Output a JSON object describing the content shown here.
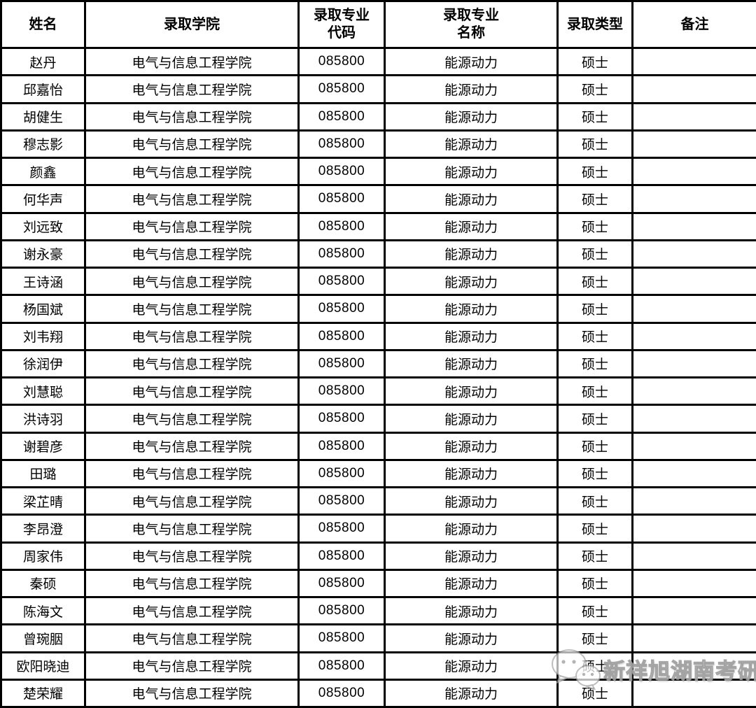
{
  "page": {
    "background": "#ffffff",
    "border_color": "#000000",
    "text_color": "#000000"
  },
  "table": {
    "fields": [
      "name",
      "college",
      "major_code",
      "major_name",
      "admission_type",
      "remark"
    ],
    "headers": [
      "姓名",
      "录取学院",
      "录取专业\n代码",
      "录取专业\n名称",
      "录取类型",
      "备注"
    ],
    "rows": [
      {
        "name": "赵丹",
        "college": "电气与信息工程学院",
        "major_code": "085800",
        "major_name": "能源动力",
        "admission_type": "硕士",
        "remark": ""
      },
      {
        "name": "邱嘉怡",
        "college": "电气与信息工程学院",
        "major_code": "085800",
        "major_name": "能源动力",
        "admission_type": "硕士",
        "remark": ""
      },
      {
        "name": "胡健生",
        "college": "电气与信息工程学院",
        "major_code": "085800",
        "major_name": "能源动力",
        "admission_type": "硕士",
        "remark": ""
      },
      {
        "name": "穆志影",
        "college": "电气与信息工程学院",
        "major_code": "085800",
        "major_name": "能源动力",
        "admission_type": "硕士",
        "remark": ""
      },
      {
        "name": "颜鑫",
        "college": "电气与信息工程学院",
        "major_code": "085800",
        "major_name": "能源动力",
        "admission_type": "硕士",
        "remark": ""
      },
      {
        "name": "何华声",
        "college": "电气与信息工程学院",
        "major_code": "085800",
        "major_name": "能源动力",
        "admission_type": "硕士",
        "remark": ""
      },
      {
        "name": "刘远致",
        "college": "电气与信息工程学院",
        "major_code": "085800",
        "major_name": "能源动力",
        "admission_type": "硕士",
        "remark": ""
      },
      {
        "name": "谢永豪",
        "college": "电气与信息工程学院",
        "major_code": "085800",
        "major_name": "能源动力",
        "admission_type": "硕士",
        "remark": ""
      },
      {
        "name": "王诗涵",
        "college": "电气与信息工程学院",
        "major_code": "085800",
        "major_name": "能源动力",
        "admission_type": "硕士",
        "remark": ""
      },
      {
        "name": "杨国斌",
        "college": "电气与信息工程学院",
        "major_code": "085800",
        "major_name": "能源动力",
        "admission_type": "硕士",
        "remark": ""
      },
      {
        "name": "刘韦翔",
        "college": "电气与信息工程学院",
        "major_code": "085800",
        "major_name": "能源动力",
        "admission_type": "硕士",
        "remark": ""
      },
      {
        "name": "徐润伊",
        "college": "电气与信息工程学院",
        "major_code": "085800",
        "major_name": "能源动力",
        "admission_type": "硕士",
        "remark": ""
      },
      {
        "name": "刘慧聪",
        "college": "电气与信息工程学院",
        "major_code": "085800",
        "major_name": "能源动力",
        "admission_type": "硕士",
        "remark": ""
      },
      {
        "name": "洪诗羽",
        "college": "电气与信息工程学院",
        "major_code": "085800",
        "major_name": "能源动力",
        "admission_type": "硕士",
        "remark": ""
      },
      {
        "name": "谢碧彦",
        "college": "电气与信息工程学院",
        "major_code": "085800",
        "major_name": "能源动力",
        "admission_type": "硕士",
        "remark": ""
      },
      {
        "name": "田璐",
        "college": "电气与信息工程学院",
        "major_code": "085800",
        "major_name": "能源动力",
        "admission_type": "硕士",
        "remark": ""
      },
      {
        "name": "梁芷晴",
        "college": "电气与信息工程学院",
        "major_code": "085800",
        "major_name": "能源动力",
        "admission_type": "硕士",
        "remark": ""
      },
      {
        "name": "李昂澄",
        "college": "电气与信息工程学院",
        "major_code": "085800",
        "major_name": "能源动力",
        "admission_type": "硕士",
        "remark": ""
      },
      {
        "name": "周家伟",
        "college": "电气与信息工程学院",
        "major_code": "085800",
        "major_name": "能源动力",
        "admission_type": "硕士",
        "remark": ""
      },
      {
        "name": "秦硕",
        "college": "电气与信息工程学院",
        "major_code": "085800",
        "major_name": "能源动力",
        "admission_type": "硕士",
        "remark": ""
      },
      {
        "name": "陈海文",
        "college": "电气与信息工程学院",
        "major_code": "085800",
        "major_name": "能源动力",
        "admission_type": "硕士",
        "remark": ""
      },
      {
        "name": "曾琬胭",
        "college": "电气与信息工程学院",
        "major_code": "085800",
        "major_name": "能源动力",
        "admission_type": "硕士",
        "remark": ""
      },
      {
        "name": "欧阳晓迪",
        "college": "电气与信息工程学院",
        "major_code": "085800",
        "major_name": "能源动力",
        "admission_type": "硕士",
        "remark": ""
      },
      {
        "name": "楚荣耀",
        "college": "电气与信息工程学院",
        "major_code": "085800",
        "major_name": "能源动力",
        "admission_type": "硕士",
        "remark": ""
      }
    ]
  },
  "watermark": {
    "text": "新祥旭湖南考研",
    "icon": "wechat-icon",
    "color": "#bdbdbd"
  }
}
